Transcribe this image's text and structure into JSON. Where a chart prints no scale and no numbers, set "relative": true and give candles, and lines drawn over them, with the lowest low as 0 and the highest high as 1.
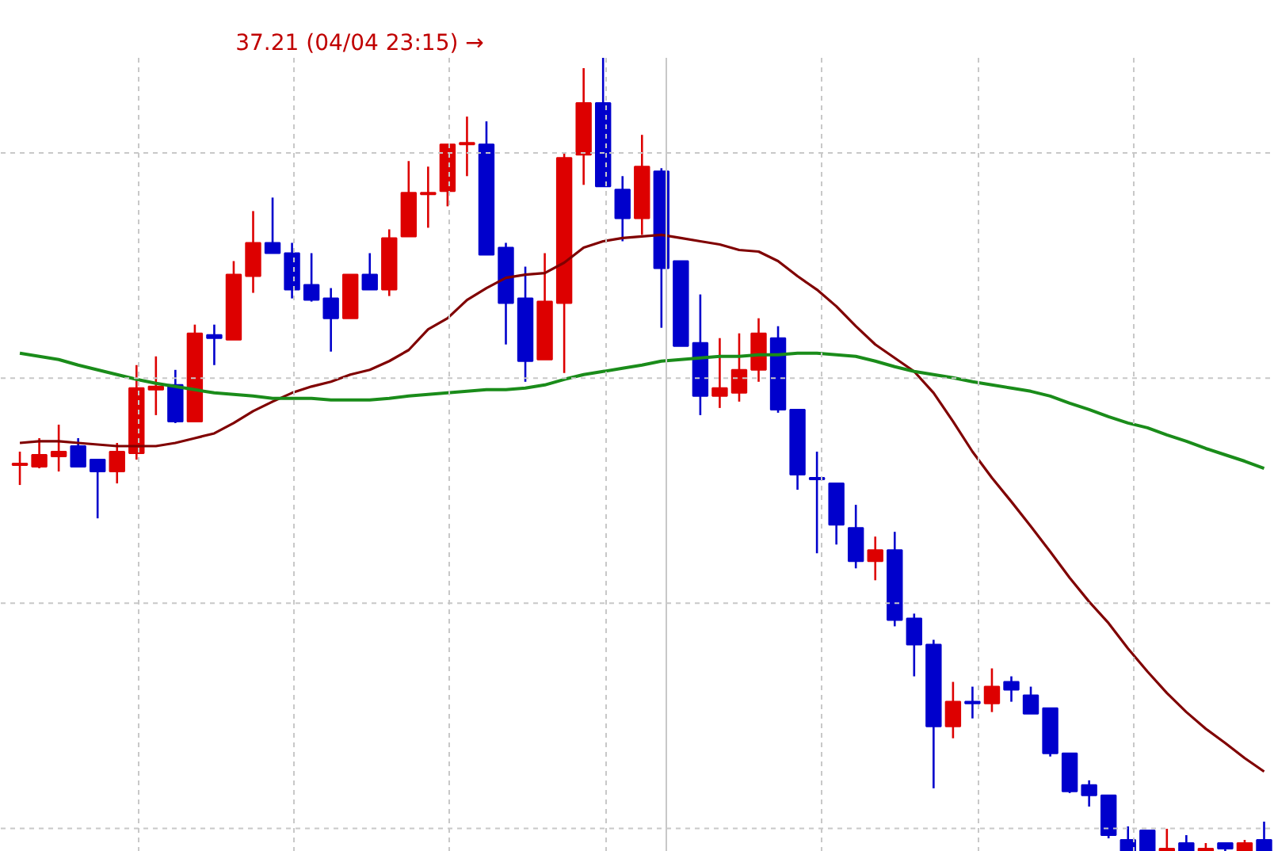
{
  "chart_data": {
    "type": "candlestick",
    "relative": true,
    "grid": true,
    "categories": [
      null,
      null,
      null,
      null,
      null,
      null,
      null,
      null,
      null,
      null,
      null,
      null,
      null,
      null,
      null,
      null,
      null,
      null,
      null,
      null,
      null,
      null,
      null,
      null,
      null,
      null,
      null,
      null,
      null,
      null,
      null,
      null,
      null,
      null,
      null,
      null,
      null,
      null,
      null,
      null,
      null,
      null,
      null,
      null,
      null,
      null,
      null,
      null,
      null,
      null,
      null,
      null,
      null,
      null,
      null,
      null,
      null,
      null,
      null,
      null,
      null,
      null,
      null,
      null,
      null
    ],
    "ohlc": [
      [
        0.487,
        0.504,
        0.462,
        0.489
      ],
      [
        0.485,
        0.521,
        0.483,
        0.5
      ],
      [
        0.498,
        0.538,
        0.479,
        0.504
      ],
      [
        0.511,
        0.521,
        0.485,
        0.485
      ],
      [
        0.494,
        0.494,
        0.42,
        0.479
      ],
      [
        0.479,
        0.515,
        0.464,
        0.504
      ],
      [
        0.502,
        0.613,
        0.494,
        0.584
      ],
      [
        0.582,
        0.624,
        0.55,
        0.586
      ],
      [
        0.588,
        0.607,
        0.54,
        0.542
      ],
      [
        0.542,
        0.664,
        0.542,
        0.653
      ],
      [
        0.651,
        0.664,
        0.613,
        0.647
      ],
      [
        0.645,
        0.744,
        0.645,
        0.727
      ],
      [
        0.725,
        0.807,
        0.704,
        0.767
      ],
      [
        0.767,
        0.824,
        0.754,
        0.754
      ],
      [
        0.754,
        0.767,
        0.697,
        0.708
      ],
      [
        0.714,
        0.754,
        0.693,
        0.695
      ],
      [
        0.697,
        0.71,
        0.63,
        0.672
      ],
      [
        0.672,
        0.727,
        0.672,
        0.727
      ],
      [
        0.727,
        0.754,
        0.708,
        0.708
      ],
      [
        0.708,
        0.784,
        0.7,
        0.773
      ],
      [
        0.775,
        0.87,
        0.775,
        0.83
      ],
      [
        0.828,
        0.863,
        0.786,
        0.83
      ],
      [
        0.832,
        0.891,
        0.813,
        0.891
      ],
      [
        0.891,
        0.926,
        0.851,
        0.893
      ],
      [
        0.891,
        0.92,
        0.752,
        0.752
      ],
      [
        0.761,
        0.767,
        0.639,
        0.691
      ],
      [
        0.697,
        0.737,
        0.592,
        0.618
      ],
      [
        0.62,
        0.754,
        0.62,
        0.693
      ],
      [
        0.691,
        0.88,
        0.603,
        0.874
      ],
      [
        0.878,
        0.987,
        0.84,
        0.943
      ],
      [
        0.943,
        1,
        0.838,
        0.838
      ],
      [
        0.834,
        0.851,
        0.769,
        0.798
      ],
      [
        0.798,
        0.903,
        0.777,
        0.863
      ],
      [
        0.857,
        0.861,
        0.66,
        0.735
      ],
      [
        0.744,
        0.744,
        0.637,
        0.637
      ],
      [
        0.641,
        0.702,
        0.55,
        0.574
      ],
      [
        0.574,
        0.647,
        0.559,
        0.584
      ],
      [
        0.578,
        0.653,
        0.567,
        0.607
      ],
      [
        0.607,
        0.672,
        0.592,
        0.653
      ],
      [
        0.647,
        0.662,
        0.553,
        0.557
      ],
      [
        0.557,
        0.557,
        0.456,
        0.475
      ],
      [
        0.471,
        0.504,
        0.376,
        0.469
      ],
      [
        0.464,
        0.464,
        0.387,
        0.412
      ],
      [
        0.408,
        0.437,
        0.357,
        0.366
      ],
      [
        0.366,
        0.397,
        0.342,
        0.38
      ],
      [
        0.38,
        0.403,
        0.284,
        0.292
      ],
      [
        0.294,
        0.3,
        0.221,
        0.261
      ],
      [
        0.261,
        0.267,
        0.08,
        0.158
      ],
      [
        0.158,
        0.214,
        0.143,
        0.189
      ],
      [
        0.189,
        0.208,
        0.168,
        0.187
      ],
      [
        0.187,
        0.231,
        0.176,
        0.208
      ],
      [
        0.214,
        0.221,
        0.189,
        0.204
      ],
      [
        0.197,
        0.208,
        0.174,
        0.174
      ],
      [
        0.181,
        0.181,
        0.12,
        0.124
      ],
      [
        0.124,
        0.124,
        0.074,
        0.076
      ],
      [
        0.084,
        0.09,
        0.057,
        0.071
      ],
      [
        0.071,
        0.071,
        0.017,
        0.021
      ],
      [
        0.015,
        0.032,
        0,
        0
      ],
      [
        0.027,
        0.027,
        0,
        0
      ],
      [
        0,
        0.029,
        0,
        0.004
      ],
      [
        0.011,
        0.021,
        0,
        0
      ],
      [
        0,
        0.011,
        0,
        0.004
      ],
      [
        0.011,
        0.011,
        0,
        0.004
      ],
      [
        0,
        0.015,
        0,
        0.011
      ],
      [
        0.015,
        0.038,
        0,
        0
      ]
    ],
    "colors": [
      "#dd0000",
      "#dd0000",
      "#dd0000",
      "#0000cc",
      "#0000cc",
      "#dd0000",
      "#dd0000",
      "#dd0000",
      "#0000cc",
      "#dd0000",
      "#0000cc",
      "#dd0000",
      "#dd0000",
      "#0000cc",
      "#0000cc",
      "#0000cc",
      "#0000cc",
      "#dd0000",
      "#0000cc",
      "#dd0000",
      "#dd0000",
      "#dd0000",
      "#dd0000",
      "#dd0000",
      "#0000cc",
      "#0000cc",
      "#0000cc",
      "#dd0000",
      "#dd0000",
      "#dd0000",
      "#0000cc",
      "#0000cc",
      "#dd0000",
      "#0000cc",
      "#0000cc",
      "#0000cc",
      "#dd0000",
      "#dd0000",
      "#dd0000",
      "#0000cc",
      "#0000cc",
      "#0000cc",
      "#0000cc",
      "#0000cc",
      "#dd0000",
      "#0000cc",
      "#0000cc",
      "#0000cc",
      "#dd0000",
      "#0000cc",
      "#dd0000",
      "#0000cc",
      "#0000cc",
      "#0000cc",
      "#0000cc",
      "#0000cc",
      "#0000cc",
      "#0000cc",
      "#0000cc",
      "#dd0000",
      "#0000cc",
      "#dd0000",
      "#0000cc",
      "#dd0000",
      "#0000cc"
    ],
    "series": [
      {
        "type": "line",
        "color": "#800000",
        "values": [
          0.515,
          0.517,
          0.517,
          0.515,
          0.513,
          0.511,
          0.511,
          0.511,
          0.515,
          0.521,
          0.527,
          0.54,
          0.555,
          0.567,
          0.578,
          0.586,
          0.592,
          0.601,
          0.607,
          0.618,
          0.632,
          0.658,
          0.672,
          0.695,
          0.71,
          0.723,
          0.727,
          0.729,
          0.742,
          0.761,
          0.769,
          0.773,
          0.775,
          0.777,
          0.773,
          0.769,
          0.765,
          0.758,
          0.756,
          0.744,
          0.725,
          0.708,
          0.687,
          0.662,
          0.639,
          0.622,
          0.605,
          0.578,
          0.542,
          0.504,
          0.471,
          0.441,
          0.41,
          0.378,
          0.345,
          0.315,
          0.288,
          0.256,
          0.227,
          0.2,
          0.176,
          0.155,
          0.137,
          0.118,
          0.101
        ]
      },
      {
        "type": "line",
        "color": "#1a8c1a",
        "values": [
          0.628,
          0.624,
          0.62,
          0.613,
          0.607,
          0.601,
          0.595,
          0.59,
          0.586,
          0.582,
          0.578,
          0.576,
          0.574,
          0.571,
          0.571,
          0.571,
          0.569,
          0.569,
          0.569,
          0.571,
          0.574,
          0.576,
          0.578,
          0.58,
          0.582,
          0.582,
          0.584,
          0.588,
          0.595,
          0.601,
          0.605,
          0.609,
          0.613,
          0.618,
          0.62,
          0.622,
          0.624,
          0.624,
          0.626,
          0.626,
          0.628,
          0.628,
          0.626,
          0.624,
          0.618,
          0.611,
          0.605,
          0.601,
          0.597,
          0.592,
          0.588,
          0.584,
          0.58,
          0.574,
          0.565,
          0.557,
          0.548,
          0.54,
          0.534,
          0.525,
          0.517,
          0.508,
          0.5,
          0.492,
          0.483
        ]
      }
    ],
    "annotations": [
      "37.21 (04/04 23:15)  →"
    ]
  }
}
